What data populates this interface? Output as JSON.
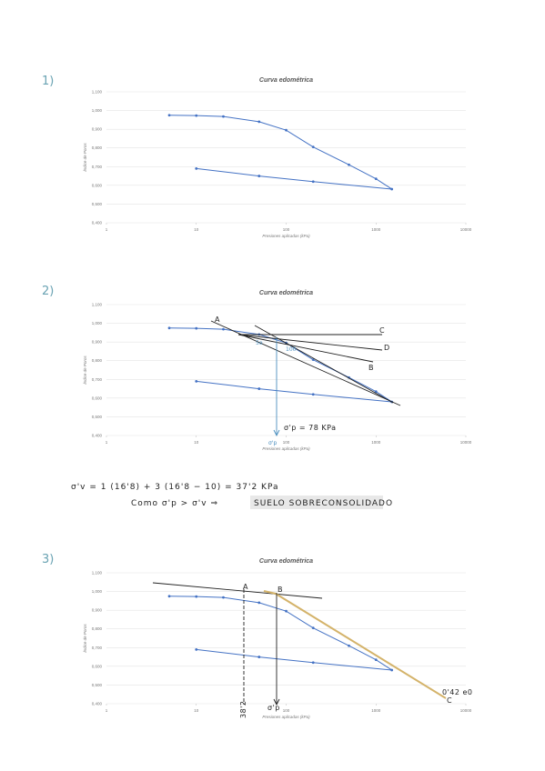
{
  "sections": [
    "1)",
    "2)",
    "3)"
  ],
  "notes": [
    "σ'v = 1 (16'8) + 3 (16'8 − 10) = 37'2 KPa",
    "Como  σ'p > σ'v  ⇒",
    "SUELO SOBRECONSOLIDADO"
  ],
  "chart_data": [
    {
      "type": "line",
      "title": "Curva edométrica",
      "x_label": "Presiones aplicadas (kPa)",
      "y_label": "Índice de Poros",
      "x": [
        5,
        10,
        20,
        50,
        100,
        200,
        500,
        1000,
        1500,
        200,
        50,
        10
      ],
      "values": [
        0.975,
        0.973,
        0.968,
        0.94,
        0.895,
        0.805,
        0.71,
        0.635,
        0.58,
        0.62,
        0.65,
        0.69
      ],
      "color": "#4472c4",
      "xscale": "log",
      "xlim": [
        1,
        10000
      ],
      "xticks": [
        1,
        10,
        100,
        1000,
        10000
      ],
      "ylim": [
        0.4,
        1.1
      ],
      "yticks": [
        {
          "value": 0.4,
          "label": "0,400"
        },
        {
          "value": 0.5,
          "label": "0,500"
        },
        {
          "value": 0.6,
          "label": "0,600"
        },
        {
          "value": 0.7,
          "label": "0,700"
        },
        {
          "value": 0.8,
          "label": "0,800"
        },
        {
          "value": 0.9,
          "label": "0,900"
        },
        {
          "value": 1.0,
          "label": "1,000"
        },
        {
          "value": 1.1,
          "label": "1,100"
        }
      ],
      "grid": true
    },
    {
      "type": "line",
      "title": "Curva edométrica",
      "x_label": "Presiones aplicadas (kPa)",
      "y_label": "Índice de Poros",
      "x": [
        5,
        10,
        20,
        50,
        100,
        200,
        500,
        1000,
        1500,
        200,
        50,
        10
      ],
      "values": [
        0.975,
        0.973,
        0.968,
        0.94,
        0.895,
        0.805,
        0.71,
        0.635,
        0.58,
        0.62,
        0.65,
        0.69
      ],
      "color": "#4472c4",
      "xscale": "log",
      "xlim": [
        1,
        10000
      ],
      "xticks": [
        1,
        10,
        100,
        1000,
        10000
      ],
      "ylim": [
        0.4,
        1.1
      ],
      "yticks": [
        {
          "value": 0.4,
          "label": "0,400"
        },
        {
          "value": 0.5,
          "label": "0,500"
        },
        {
          "value": 0.6,
          "label": "0,600"
        },
        {
          "value": 0.7,
          "label": "0,700"
        },
        {
          "value": 0.8,
          "label": "0,800"
        },
        {
          "value": 0.9,
          "label": "0,900"
        },
        {
          "value": 1.0,
          "label": "1,000"
        },
        {
          "value": 1.1,
          "label": "1,100"
        }
      ],
      "grid": true,
      "annotations": [
        "A",
        "C",
        "D",
        "B",
        "5o",
        "100",
        "σ'p = 78 KPa",
        "σ'p"
      ]
    },
    {
      "type": "line",
      "title": "Curva edométrica",
      "x_label": "Presiones aplicadas (kPa)",
      "y_label": "Índice de Poros",
      "x": [
        5,
        10,
        20,
        50,
        100,
        200,
        500,
        1000,
        1500,
        200,
        50,
        10
      ],
      "values": [
        0.975,
        0.973,
        0.968,
        0.94,
        0.895,
        0.805,
        0.71,
        0.635,
        0.58,
        0.62,
        0.65,
        0.69
      ],
      "color": "#4472c4",
      "xscale": "log",
      "xlim": [
        1,
        10000
      ],
      "xticks": [
        1,
        10,
        100,
        1000,
        10000
      ],
      "ylim": [
        0.4,
        1.1
      ],
      "yticks": [
        {
          "value": 0.4,
          "label": "0,400"
        },
        {
          "value": 0.5,
          "label": "0,500"
        },
        {
          "value": 0.6,
          "label": "0,600"
        },
        {
          "value": 0.7,
          "label": "0,700"
        },
        {
          "value": 0.8,
          "label": "0,800"
        },
        {
          "value": 0.9,
          "label": "0,900"
        },
        {
          "value": 1.0,
          "label": "1,000"
        },
        {
          "value": 1.1,
          "label": "1,100"
        }
      ],
      "grid": true,
      "annotations": [
        "A",
        "B",
        "C",
        "0'42 e0",
        "σ'p",
        "38'2"
      ]
    }
  ]
}
